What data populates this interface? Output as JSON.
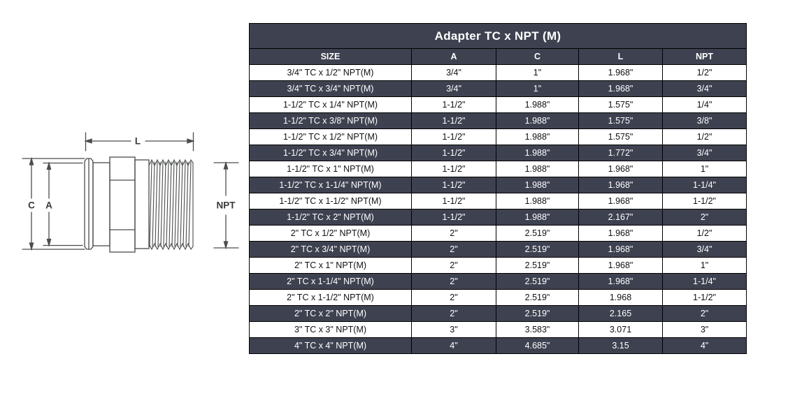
{
  "table": {
    "title": "Adapter TC x NPT (M)",
    "columns": [
      "SIZE",
      "A",
      "C",
      "L",
      "NPT"
    ],
    "rows": [
      [
        "3/4\" TC x 1/2\" NPT(M)",
        "3/4\"",
        "1\"",
        "1.968\"",
        "1/2\""
      ],
      [
        "3/4\" TC x 3/4\" NPT(M)",
        "3/4\"",
        "1\"",
        "1.968\"",
        "3/4\""
      ],
      [
        "1-1/2\" TC x 1/4\" NPT(M)",
        "1-1/2\"",
        "1.988\"",
        "1.575\"",
        "1/4\""
      ],
      [
        "1-1/2\" TC x 3/8\" NPT(M)",
        "1-1/2\"",
        "1.988\"",
        "1.575\"",
        "3/8\""
      ],
      [
        "1-1/2\" TC x 1/2\" NPT(M)",
        "1-1/2\"",
        "1.988\"",
        "1.575\"",
        "1/2\""
      ],
      [
        "1-1/2\" TC x 3/4\" NPT(M)",
        "1-1/2\"",
        "1.988\"",
        "1.772\"",
        "3/4\""
      ],
      [
        "1-1/2\" TC x 1\" NPT(M)",
        "1-1/2\"",
        "1.988\"",
        "1.968\"",
        "1\""
      ],
      [
        "1-1/2\" TC x 1-1/4\" NPT(M)",
        "1-1/2\"",
        "1.988\"",
        "1.968\"",
        "1-1/4\""
      ],
      [
        "1-1/2\" TC x 1-1/2\" NPT(M)",
        "1-1/2\"",
        "1.988\"",
        "1.968\"",
        "1-1/2\""
      ],
      [
        "1-1/2\" TC x 2\" NPT(M)",
        "1-1/2\"",
        "1.988\"",
        "2.167\"",
        "2\""
      ],
      [
        "2\" TC x 1/2\" NPT(M)",
        "2\"",
        "2.519\"",
        "1.968\"",
        "1/2\""
      ],
      [
        "2\" TC x 3/4\" NPT(M)",
        "2\"",
        "2.519\"",
        "1.968\"",
        "3/4\""
      ],
      [
        "2\" TC x 1\" NPT(M)",
        "2\"",
        "2.519\"",
        "1.968\"",
        "1\""
      ],
      [
        "2\" TC x 1-1/4\" NPT(M)",
        "2\"",
        "2.519\"",
        "1.968\"",
        "1-1/4\""
      ],
      [
        "2\" TC x 1-1/2\" NPT(M)",
        "2\"",
        "2.519\"",
        "1.968",
        "1-1/2\""
      ],
      [
        "2\" TC x 2\" NPT(M)",
        "2\"",
        "2.519\"",
        "2.165",
        "2\""
      ],
      [
        "3\" TC x 3\" NPT(M)",
        "3\"",
        "3.583\"",
        "3.071",
        "3\""
      ],
      [
        "4\" TC x 4\" NPT(M)",
        "4\"",
        "4.685\"",
        "3.15",
        "4\""
      ]
    ]
  },
  "diagram": {
    "labels": {
      "l": "L",
      "c": "C",
      "a": "A",
      "npt": "NPT"
    }
  },
  "colors": {
    "row_dark_bg": "#3e4250",
    "row_light_bg": "#ffffff",
    "grid_border": "#000000",
    "drawing_stroke": "#4b4c4e"
  }
}
